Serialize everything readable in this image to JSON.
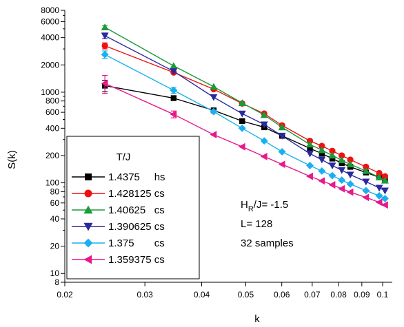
{
  "chart_data": {
    "type": "line",
    "xlabel": "k",
    "ylabel": "S(k)",
    "xscale": "log",
    "yscale": "log",
    "xlim": [
      0.02,
      0.105
    ],
    "ylim": [
      8,
      8000
    ],
    "grid": false,
    "x_ticks": [
      0.02,
      0.03,
      0.04,
      0.05,
      0.06,
      0.07,
      0.08,
      0.09,
      0.1
    ],
    "x_tick_labels": [
      "0.02",
      "0.03",
      "0.04",
      "0.05",
      "0.06",
      "0.07",
      "0.08",
      "0.09",
      "0.1"
    ],
    "y_ticks": [
      8,
      10,
      20,
      40,
      60,
      80,
      100,
      200,
      400,
      600,
      800,
      1000,
      2000,
      4000,
      6000,
      8000
    ],
    "y_tick_labels": [
      "8",
      "10",
      "20",
      "40",
      "60",
      "80",
      "100",
      "200",
      "400",
      "600",
      "800",
      "1000",
      "2000",
      "4000",
      "6000",
      "8000"
    ],
    "legend": {
      "title": "T/J",
      "position": "bottom-left",
      "entries": [
        "1.4375     hs",
        "1.428125 cs",
        "1.40625   cs",
        "1.390625 cs",
        "1.375       cs",
        "1.359375 cs"
      ]
    },
    "annotation": {
      "prefix": "H",
      "subscript": "R",
      "suffix": "/J= -1.5",
      "lines": [
        "L= 128",
        "32 samples"
      ]
    },
    "series": [
      {
        "name": "1.4375     hs",
        "color": "#000000",
        "marker": "square",
        "x": [
          0.0245,
          0.0347,
          0.0425,
          0.0491,
          0.0549,
          0.0601,
          0.0692,
          0.0735,
          0.0775,
          0.0813,
          0.0849,
          0.0919,
          0.0983,
          0.1012
        ],
        "y": [
          1180,
          860,
          630,
          480,
          410,
          330,
          240,
          210,
          185,
          165,
          150,
          130,
          115,
          108
        ],
        "err": [
          170,
          0,
          0,
          0,
          0,
          0,
          0,
          0,
          0,
          0,
          0,
          0,
          0,
          0
        ]
      },
      {
        "name": "1.428125 cs",
        "color": "#ee1111",
        "marker": "circle",
        "x": [
          0.0245,
          0.0347,
          0.0425,
          0.0491,
          0.0549,
          0.0601,
          0.0692,
          0.0735,
          0.0775,
          0.0813,
          0.0849,
          0.0919,
          0.0983,
          0.1012
        ],
        "y": [
          3250,
          1650,
          1080,
          750,
          580,
          430,
          290,
          255,
          225,
          200,
          180,
          150,
          128,
          118
        ],
        "err": [
          250,
          0,
          0,
          0,
          0,
          0,
          0,
          0,
          0,
          0,
          0,
          0,
          0,
          0
        ]
      },
      {
        "name": "1.40625   cs",
        "color": "#1a9a3a",
        "marker": "triangle-up",
        "x": [
          0.0245,
          0.0347,
          0.0425,
          0.0491,
          0.0549,
          0.0601,
          0.0692,
          0.0735,
          0.0775,
          0.0813,
          0.0849,
          0.0919,
          0.0983,
          0.1012
        ],
        "y": [
          5200,
          1950,
          1150,
          760,
          560,
          410,
          265,
          230,
          200,
          178,
          160,
          135,
          115,
          106
        ],
        "err": [
          250,
          0,
          0,
          0,
          0,
          0,
          0,
          0,
          0,
          0,
          0,
          0,
          0,
          0
        ]
      },
      {
        "name": "1.390625 cs",
        "color": "#2a2aa0",
        "marker": "triangle-down",
        "x": [
          0.0245,
          0.0347,
          0.0425,
          0.0491,
          0.0549,
          0.0601,
          0.0692,
          0.0735,
          0.0775,
          0.0813,
          0.0849,
          0.0919,
          0.0983,
          0.1012
        ],
        "y": [
          4200,
          1700,
          880,
          580,
          440,
          330,
          210,
          180,
          155,
          138,
          123,
          103,
          88,
          82
        ],
        "err": [
          300,
          0,
          0,
          0,
          0,
          0,
          0,
          0,
          0,
          0,
          0,
          0,
          0,
          0
        ]
      },
      {
        "name": "1.375       cs",
        "color": "#1ab0f0",
        "marker": "diamond",
        "x": [
          0.0245,
          0.0347,
          0.0425,
          0.0491,
          0.0549,
          0.0601,
          0.0692,
          0.0735,
          0.0775,
          0.0813,
          0.0849,
          0.0919,
          0.0983,
          0.1012
        ],
        "y": [
          2600,
          1050,
          610,
          400,
          290,
          220,
          155,
          135,
          120,
          107,
          97,
          82,
          72,
          67
        ],
        "err": [
          250,
          80,
          0,
          0,
          0,
          0,
          0,
          0,
          0,
          0,
          0,
          0,
          0,
          0
        ]
      },
      {
        "name": "1.359375 cs",
        "color": "#e8198a",
        "marker": "triangle-left",
        "x": [
          0.0245,
          0.0347,
          0.0425,
          0.0491,
          0.0549,
          0.0601,
          0.0692,
          0.0735,
          0.0775,
          0.0813,
          0.0849,
          0.0919,
          0.0983,
          0.1012
        ],
        "y": [
          1250,
          570,
          340,
          250,
          195,
          160,
          118,
          105,
          95,
          86,
          79,
          69,
          61,
          57
        ],
        "err": [
          280,
          50,
          0,
          0,
          0,
          0,
          0,
          0,
          0,
          0,
          0,
          0,
          0,
          0
        ]
      }
    ]
  }
}
